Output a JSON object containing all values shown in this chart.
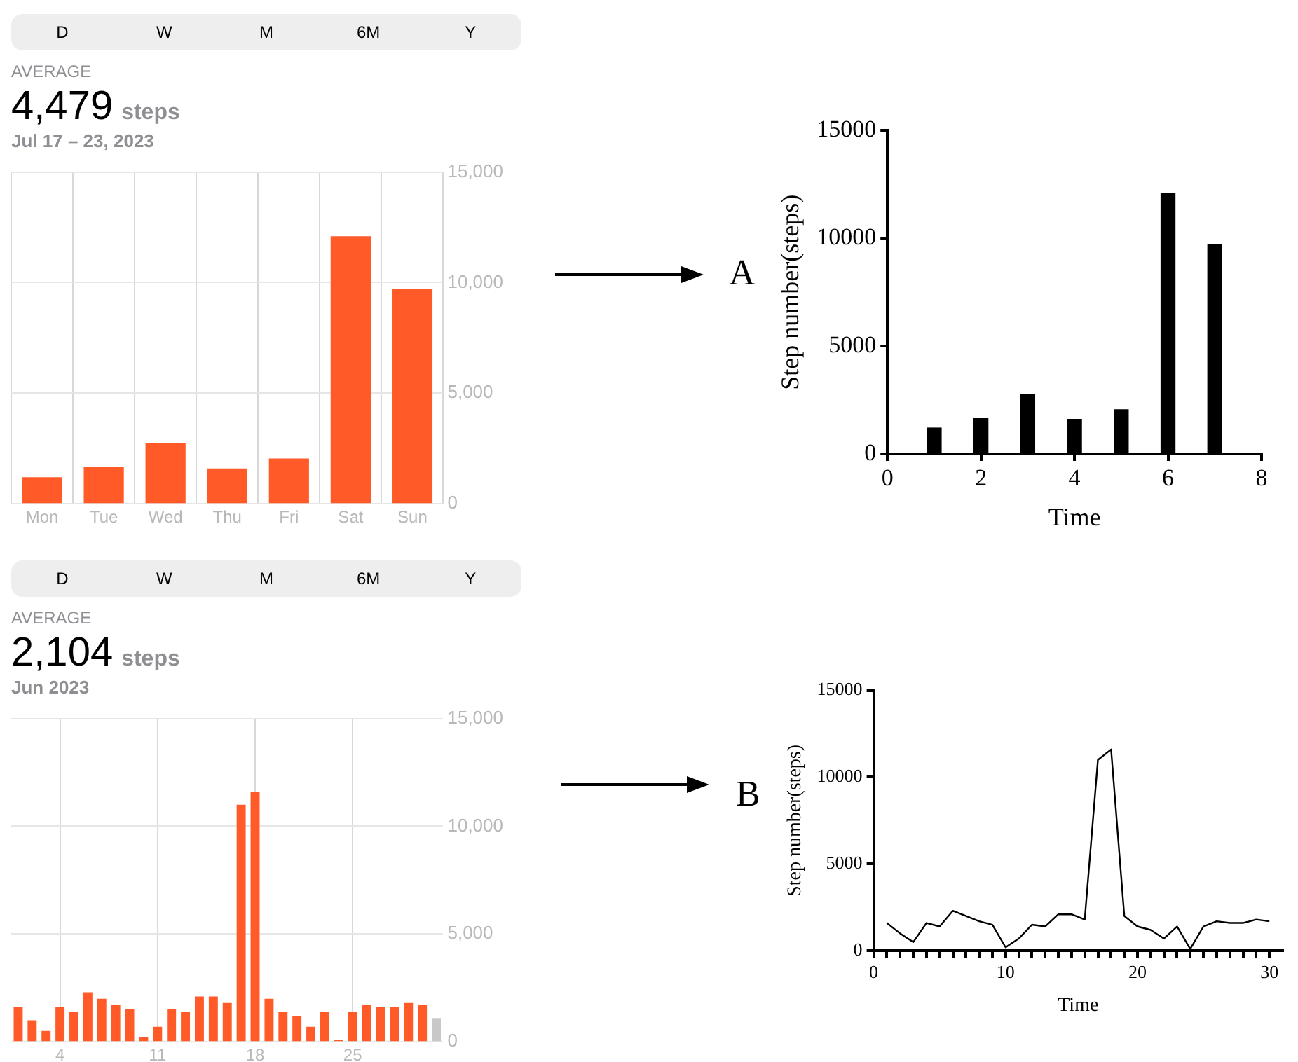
{
  "chart_data": [
    {
      "type": "bar",
      "title": "4,479 steps",
      "subtitle": "Jul 17 – 23, 2023",
      "annotations": [
        "D",
        "W",
        "M",
        "6M",
        "Y",
        "AVERAGE"
      ],
      "categories": [
        "Mon",
        "Tue",
        "Wed",
        "Thu",
        "Fri",
        "Sat",
        "Sun"
      ],
      "values": [
        1200,
        1650,
        2750,
        1600,
        2050,
        12100,
        9700
      ],
      "color": "#ff5a28",
      "ylim": [
        0,
        15000
      ],
      "yticks": [
        0,
        {
          "value": 5000,
          "label": "5,000"
        },
        {
          "value": 10000,
          "label": "10,000"
        },
        {
          "value": 15000,
          "label": "15,000"
        }
      ],
      "grid": true
    },
    {
      "type": "bar",
      "annotations": [
        "A"
      ],
      "xlabel": "Time",
      "ylabel": "Step number(steps)",
      "x": [
        1,
        2,
        3,
        4,
        5,
        6,
        7
      ],
      "values": [
        1200,
        1650,
        2750,
        1600,
        2050,
        12100,
        9700
      ],
      "color": "#000000",
      "xlim": [
        0,
        8
      ],
      "xticks": [
        0,
        2,
        4,
        6,
        8
      ],
      "ylim": [
        0,
        15000
      ],
      "yticks": [
        0,
        5000,
        10000,
        15000
      ]
    },
    {
      "type": "bar",
      "title": "2,104 steps",
      "subtitle": "Jun 2023",
      "annotations": [
        "D",
        "W",
        "M",
        "6M",
        "Y",
        "AVERAGE"
      ],
      "categories": [
        null,
        null,
        null,
        "4",
        null,
        null,
        null,
        null,
        null,
        null,
        "11",
        null,
        null,
        null,
        null,
        null,
        null,
        "18",
        null,
        null,
        null,
        null,
        null,
        null,
        "25",
        null,
        null,
        null,
        null,
        null,
        null
      ],
      "values": [
        1600,
        1000,
        500,
        1600,
        1400,
        2300,
        2000,
        1700,
        1500,
        200,
        700,
        1500,
        1400,
        2100,
        2100,
        1800,
        11000,
        11600,
        2000,
        1400,
        1200,
        700,
        1400,
        100,
        1400,
        1700,
        1600,
        1600,
        1800,
        1700,
        1100
      ],
      "colors": [
        "#ff5a28",
        "#ff5a28",
        "#ff5a28",
        "#ff5a28",
        "#ff5a28",
        "#ff5a28",
        "#ff5a28",
        "#ff5a28",
        "#ff5a28",
        "#ff5a28",
        "#ff5a28",
        "#ff5a28",
        "#ff5a28",
        "#ff5a28",
        "#ff5a28",
        "#ff5a28",
        "#ff5a28",
        "#ff5a28",
        "#ff5a28",
        "#ff5a28",
        "#ff5a28",
        "#ff5a28",
        "#ff5a28",
        "#ff5a28",
        "#ff5a28",
        "#ff5a28",
        "#ff5a28",
        "#ff5a28",
        "#ff5a28",
        "#ff5a28",
        "#c8c8c8"
      ],
      "ylim": [
        0,
        15000
      ],
      "yticks": [
        0,
        {
          "value": 5000,
          "label": "5,000"
        },
        {
          "value": 10000,
          "label": "10,000"
        },
        {
          "value": 15000,
          "label": "15,000"
        }
      ],
      "grid": true
    },
    {
      "type": "line",
      "annotations": [
        "B"
      ],
      "xlabel": "Time",
      "ylabel": "Step number(steps)",
      "x": [
        1,
        2,
        3,
        4,
        5,
        6,
        7,
        8,
        9,
        10,
        11,
        12,
        13,
        14,
        15,
        16,
        17,
        18,
        19,
        20,
        21,
        22,
        23,
        24,
        25,
        26,
        27,
        28,
        29,
        30
      ],
      "values": [
        1600,
        1000,
        500,
        1600,
        1400,
        2300,
        2000,
        1700,
        1500,
        200,
        700,
        1500,
        1400,
        2100,
        2100,
        1800,
        11000,
        11600,
        2000,
        1400,
        1200,
        700,
        1400,
        100,
        1400,
        1700,
        1600,
        1600,
        1800,
        1700
      ],
      "color": "#000000",
      "marker": "none",
      "line_style": "solid",
      "xlim": [
        0,
        31
      ],
      "xticks": [
        0,
        {
          "value": 1,
          "label": null
        },
        {
          "value": 2,
          "label": null
        },
        {
          "value": 3,
          "label": null
        },
        {
          "value": 4,
          "label": null
        },
        {
          "value": 5,
          "label": null
        },
        {
          "value": 6,
          "label": null
        },
        {
          "value": 7,
          "label": null
        },
        {
          "value": 8,
          "label": null
        },
        {
          "value": 9,
          "label": null
        },
        10,
        {
          "value": 11,
          "label": null
        },
        {
          "value": 12,
          "label": null
        },
        {
          "value": 13,
          "label": null
        },
        {
          "value": 14,
          "label": null
        },
        {
          "value": 15,
          "label": null
        },
        {
          "value": 16,
          "label": null
        },
        {
          "value": 17,
          "label": null
        },
        {
          "value": 18,
          "label": null
        },
        {
          "value": 19,
          "label": null
        },
        20,
        {
          "value": 21,
          "label": null
        },
        {
          "value": 22,
          "label": null
        },
        {
          "value": 23,
          "label": null
        },
        {
          "value": 24,
          "label": null
        },
        {
          "value": 25,
          "label": null
        },
        {
          "value": 26,
          "label": null
        },
        {
          "value": 27,
          "label": null
        },
        {
          "value": 28,
          "label": null
        },
        {
          "value": 29,
          "label": null
        },
        30
      ],
      "ylim": [
        0,
        15000
      ],
      "yticks": [
        0,
        5000,
        10000,
        15000
      ]
    }
  ]
}
